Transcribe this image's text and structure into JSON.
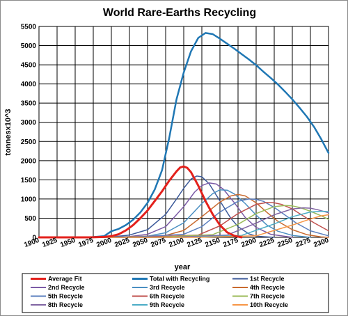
{
  "chart_data": {
    "type": "line",
    "title": "World Rare-Earths Recycling",
    "xlabel": "year",
    "ylabel": "tonnesx10^3",
    "xlim": [
      1900,
      2300
    ],
    "ylim": [
      0,
      5500
    ],
    "x_ticks": [
      1900,
      1925,
      1950,
      1975,
      2000,
      2025,
      2050,
      2075,
      2100,
      2125,
      2150,
      2175,
      2200,
      2225,
      2250,
      2275,
      2300
    ],
    "y_ticks": [
      0,
      500,
      1000,
      1500,
      2000,
      2500,
      3000,
      3500,
      4000,
      4500,
      5000,
      5500
    ],
    "grid": true,
    "legend_position": "bottom",
    "series": [
      {
        "name": "Average Fit",
        "color": "#e3211c",
        "width": 3,
        "x": [
          1900,
          1970,
          1990,
          2000,
          2010,
          2020,
          2030,
          2040,
          2050,
          2060,
          2070,
          2080,
          2090,
          2095,
          2100,
          2105,
          2110,
          2120,
          2130,
          2140,
          2150,
          2160,
          2170,
          2180
        ],
        "y": [
          0,
          0,
          10,
          30,
          80,
          180,
          320,
          500,
          700,
          950,
          1200,
          1480,
          1720,
          1820,
          1850,
          1810,
          1700,
          1350,
          950,
          600,
          320,
          130,
          40,
          0
        ]
      },
      {
        "name": "Total with Recycling",
        "color": "#1f77b4",
        "width": 2.5,
        "x": [
          1900,
          1970,
          1990,
          2000,
          2010,
          2020,
          2030,
          2040,
          2050,
          2060,
          2070,
          2080,
          2090,
          2100,
          2110,
          2120,
          2130,
          2140,
          2150,
          2160,
          2170,
          2180,
          2190,
          2200,
          2210,
          2220,
          2230,
          2240,
          2250,
          2260,
          2270,
          2280,
          2290,
          2300
        ],
        "y": [
          0,
          0,
          30,
          160,
          220,
          320,
          460,
          650,
          900,
          1250,
          1750,
          2600,
          3600,
          4300,
          4850,
          5200,
          5330,
          5300,
          5180,
          5050,
          4920,
          4780,
          4640,
          4490,
          4320,
          4160,
          3990,
          3800,
          3600,
          3380,
          3150,
          2880,
          2560,
          2200
        ]
      },
      {
        "name": "1st Recycle",
        "color": "#3c5a9a",
        "width": 1.5,
        "x": [
          1900,
          1975,
          2000,
          2025,
          2050,
          2075,
          2090,
          2100,
          2110,
          2118,
          2125,
          2135,
          2150,
          2165,
          2175,
          2190,
          2200,
          2225
        ],
        "y": [
          0,
          0,
          10,
          60,
          200,
          600,
          1000,
          1280,
          1520,
          1600,
          1580,
          1400,
          950,
          500,
          280,
          90,
          30,
          0
        ]
      },
      {
        "name": "2nd Recycle",
        "color": "#7b5aa6",
        "width": 1.5,
        "x": [
          1900,
          1990,
          2025,
          2050,
          2075,
          2100,
          2115,
          2125,
          2135,
          2145,
          2155,
          2170,
          2185,
          2200,
          2220,
          2250
        ],
        "y": [
          0,
          0,
          20,
          80,
          280,
          800,
          1180,
          1350,
          1420,
          1390,
          1250,
          900,
          520,
          260,
          80,
          0
        ]
      },
      {
        "name": "3rd Recycle",
        "color": "#4a8fc2",
        "width": 1.5,
        "x": [
          1900,
          2000,
          2050,
          2075,
          2100,
          2125,
          2140,
          2150,
          2160,
          2170,
          2185,
          2200,
          2215,
          2230,
          2250,
          2275
        ],
        "y": [
          0,
          0,
          30,
          120,
          380,
          880,
          1140,
          1240,
          1230,
          1130,
          880,
          580,
          320,
          160,
          50,
          0
        ]
      },
      {
        "name": "4th Recycle",
        "color": "#c96a2e",
        "width": 1.5,
        "x": [
          1900,
          2010,
          2075,
          2100,
          2125,
          2150,
          2165,
          2175,
          2185,
          2200,
          2215,
          2230,
          2250,
          2270,
          2290,
          2300
        ],
        "y": [
          0,
          0,
          50,
          180,
          540,
          920,
          1080,
          1120,
          1080,
          900,
          650,
          420,
          200,
          70,
          10,
          0
        ]
      },
      {
        "name": "5th Recycle",
        "color": "#5b7fbf",
        "width": 1.5,
        "x": [
          1900,
          2025,
          2100,
          2125,
          2150,
          2175,
          2190,
          2200,
          2210,
          2225,
          2240,
          2255,
          2275,
          2300
        ],
        "y": [
          0,
          0,
          80,
          280,
          660,
          940,
          1000,
          990,
          940,
          780,
          580,
          380,
          170,
          40
        ]
      },
      {
        "name": "6th Recycle",
        "color": "#c0504d",
        "width": 1.5,
        "x": [
          1900,
          2040,
          2120,
          2150,
          2175,
          2200,
          2215,
          2225,
          2235,
          2250,
          2265,
          2280,
          2300
        ],
        "y": [
          0,
          0,
          60,
          300,
          620,
          860,
          910,
          900,
          860,
          740,
          560,
          380,
          170
        ]
      },
      {
        "name": "7th Recycle",
        "color": "#9bbb59",
        "width": 1.5,
        "x": [
          1900,
          2060,
          2140,
          2175,
          2200,
          2225,
          2240,
          2250,
          2260,
          2275,
          2290,
          2300
        ],
        "y": [
          0,
          0,
          70,
          340,
          620,
          800,
          830,
          820,
          780,
          680,
          560,
          470
        ]
      },
      {
        "name": "8th Recycle",
        "color": "#8064a2",
        "width": 1.5,
        "x": [
          1900,
          2080,
          2160,
          2200,
          2225,
          2250,
          2265,
          2275,
          2285,
          2300
        ],
        "y": [
          0,
          0,
          60,
          370,
          590,
          740,
          770,
          760,
          720,
          640
        ]
      },
      {
        "name": "9th Recycle",
        "color": "#4bacc6",
        "width": 1.5,
        "x": [
          1900,
          2100,
          2180,
          2225,
          2250,
          2275,
          2290,
          2300
        ],
        "y": [
          0,
          0,
          50,
          350,
          540,
          660,
          680,
          670
        ]
      },
      {
        "name": "10th Recycle",
        "color": "#f79646",
        "width": 1.5,
        "x": [
          1900,
          2120,
          2200,
          2250,
          2275,
          2290,
          2300
        ],
        "y": [
          0,
          0,
          40,
          320,
          480,
          560,
          590
        ]
      }
    ]
  }
}
